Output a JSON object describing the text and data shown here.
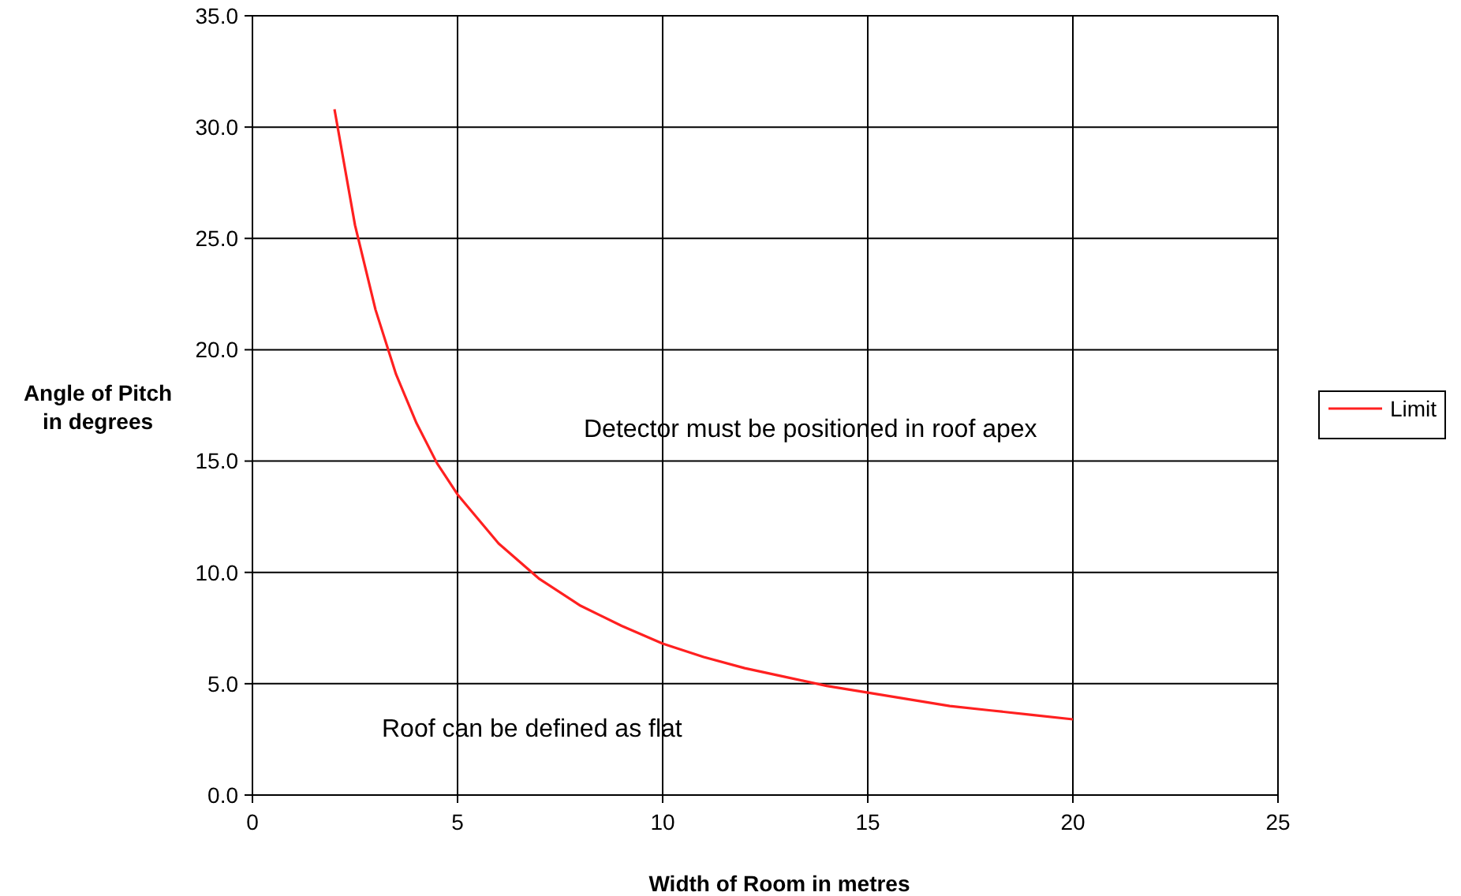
{
  "chart_data": {
    "type": "line",
    "xlabel": "Width of Room in metres",
    "ylabel": "Angle of Pitch\nin degrees",
    "x": [
      2,
      2.5,
      3,
      3.5,
      4,
      4.5,
      5,
      6,
      7,
      8,
      9,
      10,
      11,
      12,
      13,
      14,
      15,
      16,
      17,
      18,
      19,
      20
    ],
    "series": [
      {
        "name": "Limit",
        "color": "#ff2020",
        "values": [
          30.8,
          25.6,
          21.8,
          18.9,
          16.7,
          14.9,
          13.5,
          11.3,
          9.7,
          8.5,
          7.6,
          6.8,
          6.2,
          5.7,
          5.3,
          4.9,
          4.6,
          4.3,
          4.0,
          3.8,
          3.6,
          3.4
        ]
      }
    ],
    "xlim": [
      0,
      25
    ],
    "xticks": [
      0,
      5,
      10,
      15,
      20,
      25
    ],
    "ylim": [
      0,
      35
    ],
    "yticks": [
      {
        "value": 0,
        "label": "0.0"
      },
      {
        "value": 5,
        "label": "5.0"
      },
      {
        "value": 10,
        "label": "10.0"
      },
      {
        "value": 15,
        "label": "15.0"
      },
      {
        "value": 20,
        "label": "20.0"
      },
      {
        "value": 25,
        "label": "25.0"
      },
      {
        "value": 30,
        "label": "30.0"
      },
      {
        "value": 35,
        "label": "35.0"
      }
    ],
    "grid": true,
    "legend": "right",
    "marker": "none",
    "line_style": "solid",
    "annotations": [
      "Detector must be positioned in roof apex",
      "Roof can be defined as flat"
    ]
  }
}
